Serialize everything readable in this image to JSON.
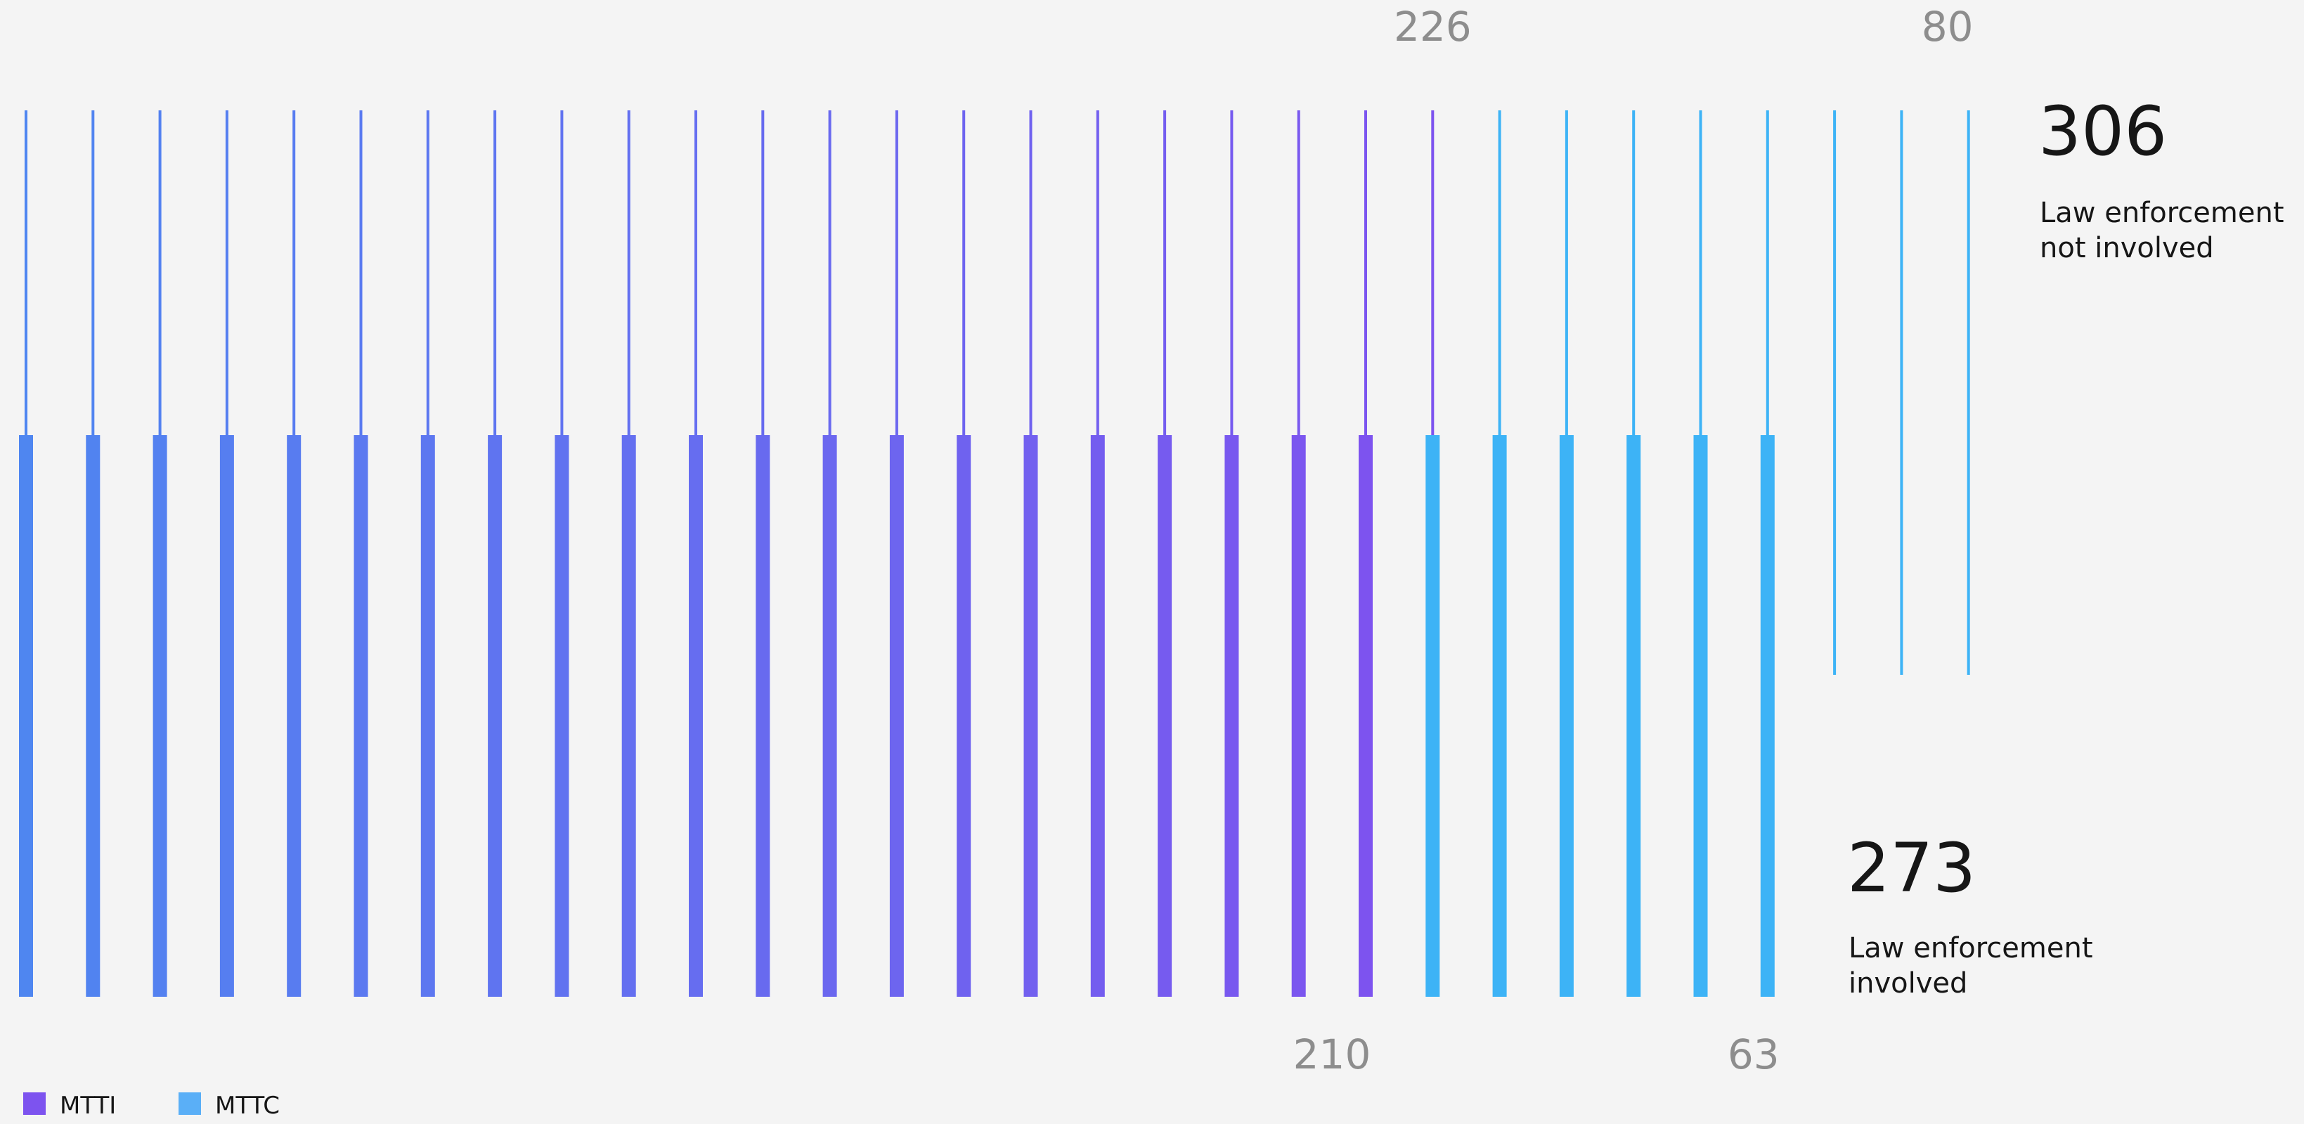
{
  "chart_data": {
    "type": "bar",
    "subtype": "unit-bars-two-rows",
    "title": "",
    "grid": false,
    "legend_position": "bottom-left",
    "colors": {
      "background": "#f4f4f4",
      "mtti": "#7d53ef",
      "mttc": "#3db3f6",
      "gradient_start": "#4f86f0",
      "label_gray": "#8d8d8d",
      "text_dark": "#161616"
    },
    "legend": [
      {
        "label": "MTTI",
        "color": "#7d53ef"
      },
      {
        "label": "MTTC",
        "color": "#5aaff7"
      }
    ],
    "rows": [
      {
        "name": "Law enforcement not involved",
        "total": 306,
        "total_label": "306",
        "caption_lines": [
          "Law enforcement",
          "not involved"
        ],
        "bar_style": "thin",
        "bar_count": 30,
        "segments": [
          {
            "series": "MTTI",
            "value": 226,
            "value_label": "226",
            "bars": 22
          },
          {
            "series": "MTTC",
            "value": 80,
            "value_label": "80",
            "bars": 8
          }
        ]
      },
      {
        "name": "Law enforcement involved",
        "total": 273,
        "total_label": "273",
        "caption_lines": [
          "Law enforcement",
          "involved"
        ],
        "bar_style": "thick",
        "bar_count": 27,
        "segments": [
          {
            "series": "MTTI",
            "value": 210,
            "value_label": "210",
            "bars": 21
          },
          {
            "series": "MTTC",
            "value": 63,
            "value_label": "63",
            "bars": 6
          }
        ]
      }
    ]
  }
}
